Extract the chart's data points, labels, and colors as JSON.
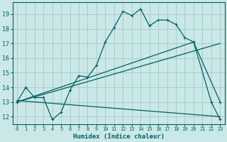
{
  "xlabel": "Humidex (Indice chaleur)",
  "bg_color": "#cbe8e8",
  "grid_color": "#a8cccc",
  "line_color": "#006060",
  "xlim": [
    -0.5,
    23.5
  ],
  "ylim": [
    11.5,
    19.8
  ],
  "yticks": [
    12,
    13,
    14,
    15,
    16,
    17,
    18,
    19
  ],
  "xticks": [
    0,
    1,
    2,
    3,
    4,
    5,
    6,
    7,
    8,
    9,
    10,
    11,
    12,
    13,
    14,
    15,
    16,
    17,
    18,
    19,
    20,
    21,
    22,
    23
  ],
  "line1_x": [
    0,
    1,
    2,
    3,
    4,
    5,
    6,
    7,
    8,
    9,
    10,
    11,
    12,
    13,
    14,
    15,
    16,
    17,
    18,
    19,
    20,
    22,
    23
  ],
  "line1_y": [
    13.0,
    14.0,
    13.3,
    13.3,
    11.8,
    12.3,
    13.8,
    14.8,
    14.7,
    15.5,
    17.1,
    18.1,
    19.2,
    18.9,
    19.35,
    18.2,
    18.6,
    18.6,
    18.3,
    17.4,
    17.1,
    13.0,
    11.8
  ],
  "line2_x": [
    0,
    20,
    23
  ],
  "line2_y": [
    13.0,
    17.1,
    13.0
  ],
  "line3_x": [
    0,
    23
  ],
  "line3_y": [
    13.0,
    17.0
  ],
  "line4_x": [
    0,
    23
  ],
  "line4_y": [
    13.1,
    12.0
  ]
}
